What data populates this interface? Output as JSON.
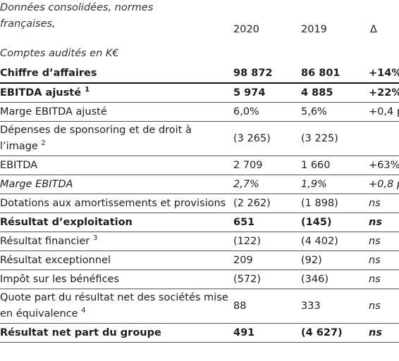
{
  "header": {
    "title": "Données consolidées, normes françaises,",
    "columns": [
      "2020",
      "2019",
      "Δ"
    ],
    "subtitle": "Comptes audités en K€"
  },
  "table": {
    "rows": [
      {
        "cells": [
          "Chiffre d’affaires",
          "98 872",
          "86 801",
          "+14%"
        ],
        "style": "bold"
      },
      {
        "cells": [
          "EBITDA ajusté",
          "5 974",
          "4 885",
          "+22%"
        ],
        "note": "1",
        "style": "bold"
      },
      {
        "cells": [
          "Marge EBITDA ajusté",
          "6,0%",
          "5,6%",
          "+0,4 p"
        ],
        "style": "normal"
      },
      {
        "cells": [
          "Dépenses de sponsoring et de droit à l’image",
          "(3 265)",
          "(3 225)"
        ],
        "note": "2",
        "style": "normal"
      },
      {
        "cells": [
          "EBITDA",
          "2 709",
          "1 660",
          "+63%"
        ],
        "style": "normal"
      },
      {
        "cells": [
          "Marge EBITDA",
          "2,7%",
          "1,9%",
          "+0,8 p"
        ],
        "style": "italic"
      },
      {
        "cells": [
          "Dotations aux amortissements et provisions",
          "(2 262)",
          "(1 898)",
          "ns"
        ],
        "style": "normal",
        "delta_italic": true
      },
      {
        "cells": [
          "Résultat d’exploitation",
          "651",
          "(145)",
          "ns"
        ],
        "style": "bold",
        "delta_italic": true
      },
      {
        "cells": [
          "Résultat financier",
          "(122)",
          "(4 402)",
          "ns"
        ],
        "note": "3",
        "style": "normal",
        "delta_italic": true
      },
      {
        "cells": [
          "Résultat exceptionnel",
          "209",
          "(92)",
          "ns"
        ],
        "style": "normal",
        "delta_italic": true
      },
      {
        "cells": [
          "Impôt sur les bénéfices",
          "(572)",
          "(346)",
          "ns"
        ],
        "style": "normal",
        "delta_italic": true
      },
      {
        "cells": [
          "Quote part du résultat net des sociétés mise en équivalence",
          "88",
          "333",
          "ns"
        ],
        "note": "4",
        "style": "normal",
        "delta_italic": true
      },
      {
        "cells": [
          "Résultat net part du groupe",
          "491",
          "(4 627)",
          "ns"
        ],
        "style": "bold",
        "delta_italic": true
      }
    ]
  }
}
